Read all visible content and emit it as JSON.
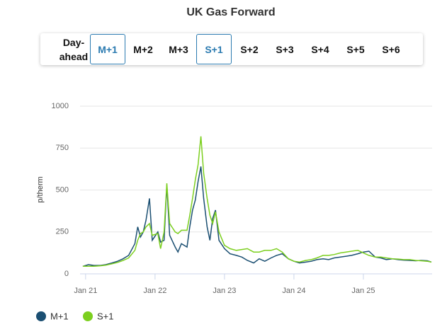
{
  "controls": {
    "buttons": [
      {
        "label": "Day-ahead",
        "selected": false
      },
      {
        "label": "M+1",
        "selected": true
      },
      {
        "label": "M+2",
        "selected": false
      },
      {
        "label": "M+3",
        "selected": false
      },
      {
        "label": "S+1",
        "selected": true
      },
      {
        "label": "S+2",
        "selected": false
      },
      {
        "label": "S+3",
        "selected": false
      },
      {
        "label": "S+4",
        "selected": false
      },
      {
        "label": "S+5",
        "selected": false
      },
      {
        "label": "S+6",
        "selected": false
      }
    ]
  },
  "chart_data": {
    "type": "line",
    "title": "UK Gas Forward",
    "y_label": "p/therm",
    "x": [
      2020.96,
      2021.04,
      2021.12,
      2021.21,
      2021.29,
      2021.38,
      2021.46,
      2021.54,
      2021.62,
      2021.71,
      2021.75,
      2021.79,
      2021.83,
      2021.87,
      2021.92,
      2021.96,
      2022.04,
      2022.08,
      2022.13,
      2022.17,
      2022.21,
      2022.29,
      2022.33,
      2022.38,
      2022.46,
      2022.5,
      2022.54,
      2022.58,
      2022.62,
      2022.66,
      2022.7,
      2022.75,
      2022.79,
      2022.83,
      2022.87,
      2022.92,
      2023.0,
      2023.08,
      2023.17,
      2023.25,
      2023.33,
      2023.42,
      2023.5,
      2023.58,
      2023.67,
      2023.75,
      2023.83,
      2023.92,
      2024.0,
      2024.08,
      2024.17,
      2024.25,
      2024.33,
      2024.42,
      2024.5,
      2024.58,
      2024.67,
      2024.75,
      2024.83,
      2024.92,
      2025.0,
      2025.08,
      2025.17,
      2025.25,
      2025.33,
      2025.42,
      2025.5,
      2025.58,
      2025.67,
      2025.75,
      2025.83,
      2025.92,
      2025.98
    ],
    "series": [
      {
        "name": "M+1",
        "color": "#1b4f72",
        "values": [
          45,
          55,
          50,
          50,
          55,
          65,
          75,
          90,
          110,
          180,
          280,
          220,
          250,
          320,
          450,
          200,
          250,
          190,
          200,
          530,
          230,
          160,
          130,
          180,
          160,
          280,
          380,
          440,
          550,
          640,
          450,
          280,
          200,
          330,
          380,
          200,
          150,
          120,
          110,
          100,
          80,
          65,
          90,
          75,
          95,
          110,
          120,
          90,
          75,
          65,
          70,
          75,
          85,
          90,
          85,
          95,
          100,
          105,
          110,
          120,
          130,
          135,
          100,
          95,
          85,
          90,
          85,
          82,
          80,
          78,
          80,
          78,
          70
        ]
      },
      {
        "name": "S+1",
        "color": "#7ccf1f",
        "values": [
          45,
          45,
          45,
          48,
          52,
          60,
          68,
          80,
          95,
          140,
          200,
          240,
          250,
          280,
          300,
          230,
          240,
          150,
          250,
          540,
          300,
          250,
          240,
          260,
          260,
          350,
          450,
          560,
          650,
          820,
          600,
          450,
          350,
          300,
          370,
          250,
          170,
          150,
          140,
          145,
          150,
          130,
          130,
          140,
          140,
          150,
          130,
          90,
          75,
          70,
          80,
          85,
          95,
          110,
          110,
          115,
          125,
          130,
          135,
          140,
          125,
          110,
          100,
          100,
          95,
          90,
          88,
          85,
          85,
          80,
          78,
          75,
          70
        ]
      }
    ],
    "xlim": [
      2020.92,
      2025.99
    ],
    "xticks": [
      {
        "value": 2021,
        "label": "Jan 21"
      },
      {
        "value": 2022,
        "label": "Jan 22"
      },
      {
        "value": 2023,
        "label": "Jan 23"
      },
      {
        "value": 2024,
        "label": "Jan 24"
      },
      {
        "value": 2025,
        "label": "Jan 25"
      }
    ],
    "ylim": [
      0,
      1000
    ],
    "yticks": [
      0,
      250,
      500,
      750,
      1000
    ],
    "grid": true
  }
}
